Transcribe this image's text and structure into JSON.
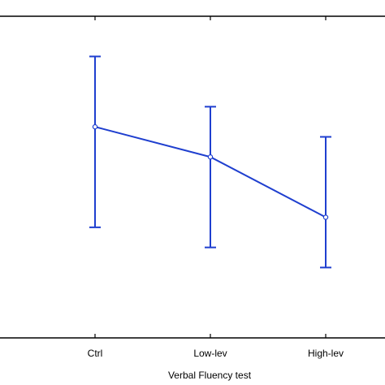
{
  "chart_data": {
    "type": "line",
    "categories": [
      "Ctrl",
      "Low-lev",
      "High-lev"
    ],
    "series": [
      {
        "values": [
          0.6,
          0.3,
          -0.3
        ],
        "error_low": [
          -0.4,
          -0.6,
          -0.8
        ],
        "error_high": [
          1.3,
          0.8,
          0.5
        ]
      }
    ],
    "xlabel": "Verbal Fluency test",
    "ylim": [
      -1.5,
      1.7
    ],
    "grid": false,
    "colors": {
      "series": "#1f3fcf",
      "axis": "#000000"
    }
  }
}
